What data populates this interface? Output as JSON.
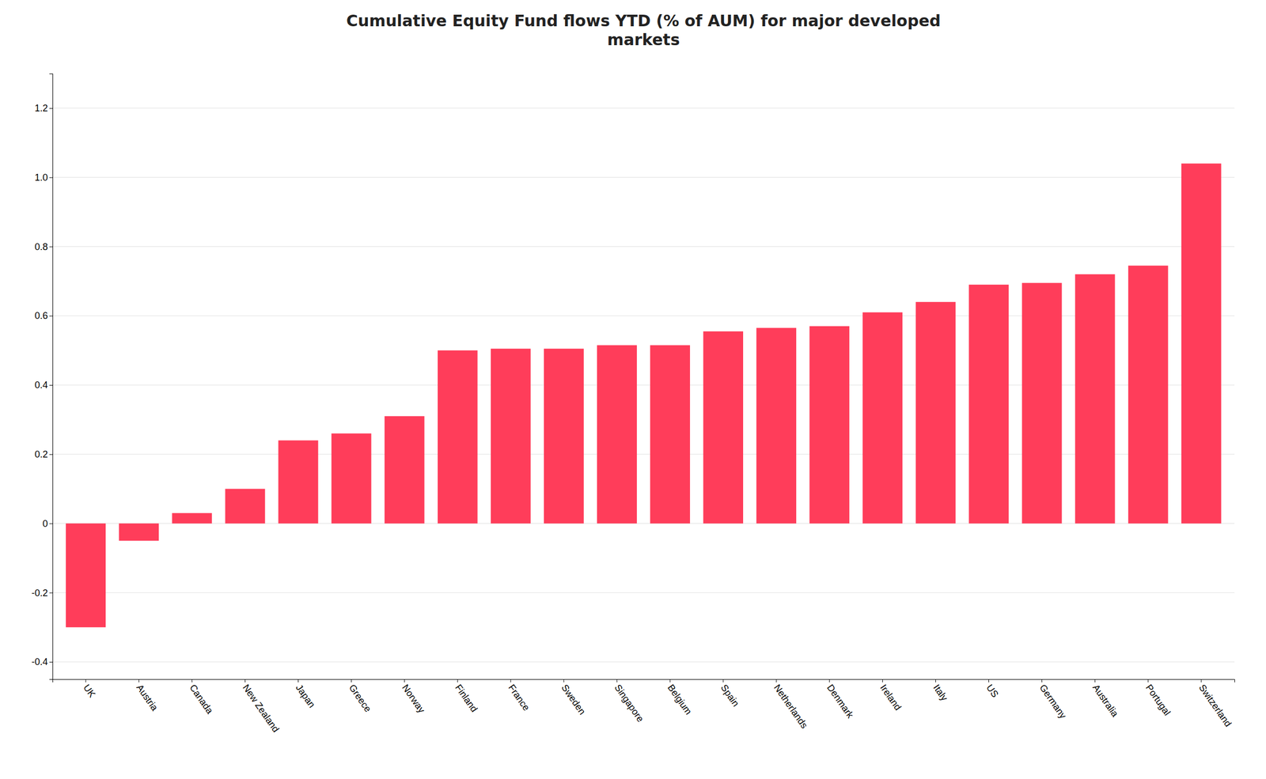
{
  "chart_data": {
    "type": "bar",
    "title": "Cumulative Equity Fund flows YTD (% of AUM) for major developed\nmarkets",
    "categories": [
      "UK",
      "Austria",
      "Canada",
      "New Zealand",
      "Japan",
      "Greece",
      "Norway",
      "Finland",
      "France",
      "Sweden",
      "Singapore",
      "Belgium",
      "Spain",
      "Netherlands",
      "Denmark",
      "Ireland",
      "Italy",
      "US",
      "Germany",
      "Australia",
      "Portugal",
      "Switzerland"
    ],
    "values": [
      -0.3,
      -0.05,
      0.03,
      0.1,
      0.24,
      0.26,
      0.31,
      0.5,
      0.505,
      0.505,
      0.515,
      0.515,
      0.555,
      0.565,
      0.57,
      0.61,
      0.64,
      0.69,
      0.695,
      0.72,
      0.745,
      1.04
    ],
    "color": "#FF3D5A",
    "ylim": [
      -0.45,
      1.3
    ],
    "yticks": [
      -0.4,
      -0.2,
      0,
      0.2,
      0.4,
      0.6,
      0.8,
      {
        "value": 1.0,
        "label": "1.0"
      },
      1.2
    ],
    "grid": true
  }
}
